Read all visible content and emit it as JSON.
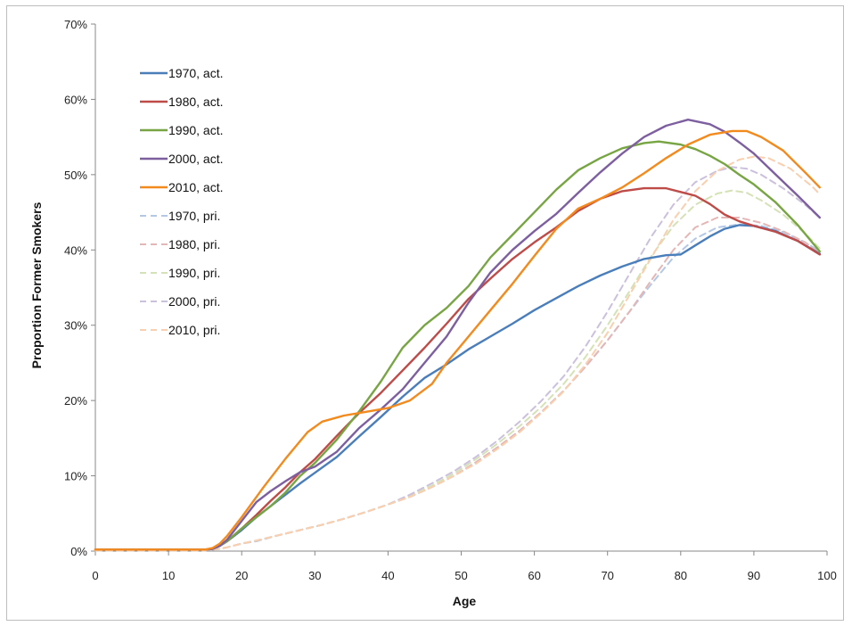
{
  "chart_data": {
    "type": "line",
    "title": "",
    "xlabel": "Age",
    "ylabel": "Proportion Former Smokers",
    "xlim": [
      0,
      100
    ],
    "ylim": [
      0,
      0.7
    ],
    "x_ticks": [
      "0",
      "10",
      "20",
      "30",
      "40",
      "50",
      "60",
      "70",
      "80",
      "90",
      "100"
    ],
    "y_ticks": [
      "0%",
      "10%",
      "20%",
      "30%",
      "40%",
      "50%",
      "60%",
      "70%"
    ],
    "grid": false,
    "legend_position": "top-left",
    "series": [
      {
        "name": "1970, act.",
        "color": "#4a7ebb",
        "dashed": false,
        "x": [
          0,
          15,
          16,
          17,
          18,
          20,
          22,
          24,
          26,
          28,
          30,
          33,
          36,
          39,
          42,
          45,
          48,
          51,
          54,
          57,
          60,
          63,
          66,
          69,
          72,
          75,
          78,
          80,
          82,
          84,
          86,
          88,
          90,
          93,
          96,
          99
        ],
        "y": [
          0.002,
          0.002,
          0.003,
          0.007,
          0.013,
          0.028,
          0.045,
          0.06,
          0.075,
          0.09,
          0.104,
          0.125,
          0.152,
          0.178,
          0.205,
          0.23,
          0.248,
          0.268,
          0.285,
          0.302,
          0.32,
          0.336,
          0.352,
          0.366,
          0.378,
          0.388,
          0.393,
          0.394,
          0.406,
          0.418,
          0.428,
          0.433,
          0.432,
          0.425,
          0.412,
          0.395
        ]
      },
      {
        "name": "1980, act.",
        "color": "#be4b48",
        "dashed": false,
        "x": [
          0,
          15,
          16,
          17,
          18,
          20,
          22,
          24,
          26,
          28,
          30,
          33,
          36,
          39,
          42,
          45,
          48,
          51,
          54,
          57,
          60,
          63,
          66,
          69,
          72,
          75,
          78,
          80,
          82,
          84,
          86,
          88,
          90,
          93,
          96,
          99
        ],
        "y": [
          0.002,
          0.002,
          0.003,
          0.007,
          0.013,
          0.03,
          0.048,
          0.067,
          0.085,
          0.105,
          0.122,
          0.153,
          0.183,
          0.21,
          0.24,
          0.27,
          0.302,
          0.335,
          0.362,
          0.388,
          0.41,
          0.43,
          0.452,
          0.468,
          0.478,
          0.482,
          0.482,
          0.477,
          0.472,
          0.461,
          0.447,
          0.438,
          0.432,
          0.424,
          0.412,
          0.394
        ]
      },
      {
        "name": "1990, act.",
        "color": "#78a543",
        "dashed": false,
        "x": [
          0,
          15,
          16,
          17,
          18,
          20,
          22,
          24,
          26,
          28,
          30,
          33,
          36,
          39,
          42,
          45,
          48,
          51,
          54,
          57,
          60,
          63,
          66,
          69,
          72,
          75,
          77,
          80,
          82,
          84,
          86,
          88,
          90,
          93,
          96,
          99
        ],
        "y": [
          0.002,
          0.002,
          0.003,
          0.007,
          0.013,
          0.03,
          0.045,
          0.06,
          0.078,
          0.1,
          0.117,
          0.148,
          0.185,
          0.225,
          0.27,
          0.3,
          0.323,
          0.352,
          0.39,
          0.42,
          0.45,
          0.48,
          0.506,
          0.522,
          0.535,
          0.542,
          0.544,
          0.54,
          0.534,
          0.525,
          0.514,
          0.5,
          0.487,
          0.463,
          0.433,
          0.398
        ]
      },
      {
        "name": "2000, act.",
        "color": "#7d5fa0",
        "dashed": false,
        "x": [
          0,
          15,
          16,
          17,
          18,
          20,
          22,
          24,
          26,
          28,
          30,
          33,
          36,
          39,
          42,
          45,
          48,
          51,
          54,
          57,
          60,
          63,
          66,
          69,
          72,
          75,
          78,
          81,
          84,
          86,
          88,
          90,
          93,
          96,
          99
        ],
        "y": [
          0.002,
          0.002,
          0.003,
          0.007,
          0.015,
          0.04,
          0.065,
          0.08,
          0.093,
          0.105,
          0.112,
          0.132,
          0.163,
          0.188,
          0.215,
          0.25,
          0.285,
          0.33,
          0.37,
          0.4,
          0.425,
          0.448,
          0.476,
          0.503,
          0.528,
          0.55,
          0.565,
          0.573,
          0.567,
          0.557,
          0.543,
          0.528,
          0.5,
          0.472,
          0.443
        ]
      },
      {
        "name": "2010, act.",
        "color": "#f28a1e",
        "dashed": false,
        "x": [
          0,
          15,
          16,
          17,
          18,
          20,
          23,
          26,
          29,
          31,
          34,
          37,
          40,
          43,
          46,
          48,
          51,
          54,
          57,
          60,
          63,
          66,
          69,
          72,
          75,
          78,
          81,
          84,
          87,
          89,
          91,
          94,
          97,
          99
        ],
        "y": [
          0.002,
          0.002,
          0.004,
          0.01,
          0.02,
          0.045,
          0.085,
          0.123,
          0.158,
          0.172,
          0.18,
          0.185,
          0.19,
          0.2,
          0.222,
          0.25,
          0.285,
          0.32,
          0.355,
          0.392,
          0.428,
          0.455,
          0.468,
          0.483,
          0.502,
          0.522,
          0.54,
          0.553,
          0.558,
          0.558,
          0.55,
          0.532,
          0.503,
          0.483
        ]
      },
      {
        "name": "1970, pri.",
        "color": "#b3c7e6",
        "dashed": true,
        "x": [
          0,
          15,
          16,
          17,
          18,
          20,
          22,
          25,
          28,
          31,
          34,
          37,
          40,
          43,
          46,
          49,
          52,
          55,
          58,
          61,
          64,
          67,
          70,
          73,
          76,
          79,
          82,
          85,
          88,
          91,
          94,
          97,
          99
        ],
        "y": [
          0.001,
          0.001,
          0.002,
          0.003,
          0.005,
          0.01,
          0.013,
          0.021,
          0.028,
          0.035,
          0.043,
          0.052,
          0.062,
          0.072,
          0.085,
          0.1,
          0.118,
          0.138,
          0.16,
          0.185,
          0.213,
          0.245,
          0.28,
          0.318,
          0.355,
          0.39,
          0.415,
          0.43,
          0.434,
          0.432,
          0.424,
          0.41,
          0.398
        ]
      },
      {
        "name": "1980, pri.",
        "color": "#e5b6b5",
        "dashed": true,
        "x": [
          0,
          15,
          16,
          17,
          18,
          20,
          22,
          25,
          28,
          31,
          34,
          37,
          40,
          43,
          46,
          49,
          52,
          55,
          58,
          61,
          64,
          67,
          70,
          73,
          76,
          79,
          82,
          85,
          88,
          91,
          94,
          97,
          99
        ],
        "y": [
          0.001,
          0.001,
          0.002,
          0.003,
          0.005,
          0.01,
          0.014,
          0.021,
          0.028,
          0.035,
          0.043,
          0.052,
          0.062,
          0.072,
          0.085,
          0.1,
          0.118,
          0.138,
          0.16,
          0.185,
          0.213,
          0.245,
          0.28,
          0.318,
          0.36,
          0.4,
          0.43,
          0.443,
          0.443,
          0.436,
          0.425,
          0.41,
          0.396
        ]
      },
      {
        "name": "1990, pri.",
        "color": "#d4e2b6",
        "dashed": true,
        "x": [
          0,
          15,
          16,
          17,
          18,
          20,
          22,
          25,
          28,
          31,
          34,
          37,
          40,
          43,
          46,
          49,
          52,
          55,
          58,
          61,
          64,
          67,
          70,
          73,
          76,
          79,
          82,
          85,
          87,
          89,
          91,
          94,
          97,
          99
        ],
        "y": [
          0.001,
          0.001,
          0.002,
          0.003,
          0.005,
          0.01,
          0.014,
          0.021,
          0.028,
          0.035,
          0.043,
          0.052,
          0.062,
          0.073,
          0.087,
          0.103,
          0.122,
          0.143,
          0.166,
          0.192,
          0.222,
          0.258,
          0.3,
          0.345,
          0.392,
          0.432,
          0.46,
          0.475,
          0.479,
          0.476,
          0.466,
          0.447,
          0.422,
          0.402
        ]
      },
      {
        "name": "2000, pri.",
        "color": "#cbc0dd",
        "dashed": true,
        "x": [
          0,
          15,
          16,
          17,
          18,
          20,
          22,
          25,
          28,
          31,
          34,
          37,
          40,
          43,
          46,
          49,
          52,
          55,
          58,
          61,
          64,
          67,
          70,
          73,
          76,
          79,
          82,
          85,
          87,
          89,
          91,
          94,
          97,
          99
        ],
        "y": [
          0.001,
          0.001,
          0.002,
          0.003,
          0.005,
          0.01,
          0.014,
          0.021,
          0.028,
          0.035,
          0.043,
          0.052,
          0.062,
          0.075,
          0.09,
          0.106,
          0.125,
          0.147,
          0.172,
          0.2,
          0.232,
          0.272,
          0.318,
          0.368,
          0.418,
          0.46,
          0.49,
          0.505,
          0.51,
          0.508,
          0.5,
          0.482,
          0.46,
          0.443
        ]
      },
      {
        "name": "2010, pri.",
        "color": "#f9cfae",
        "dashed": true,
        "x": [
          0,
          15,
          16,
          17,
          18,
          20,
          22,
          25,
          28,
          31,
          34,
          37,
          40,
          43,
          46,
          49,
          52,
          55,
          58,
          61,
          64,
          67,
          70,
          73,
          76,
          79,
          82,
          85,
          88,
          90,
          92,
          95,
          98,
          99
        ],
        "y": [
          0.001,
          0.001,
          0.002,
          0.003,
          0.005,
          0.01,
          0.014,
          0.021,
          0.028,
          0.035,
          0.043,
          0.052,
          0.062,
          0.072,
          0.085,
          0.1,
          0.116,
          0.136,
          0.158,
          0.184,
          0.212,
          0.248,
          0.29,
          0.34,
          0.39,
          0.44,
          0.478,
          0.505,
          0.52,
          0.524,
          0.522,
          0.508,
          0.484,
          0.474
        ]
      }
    ]
  }
}
